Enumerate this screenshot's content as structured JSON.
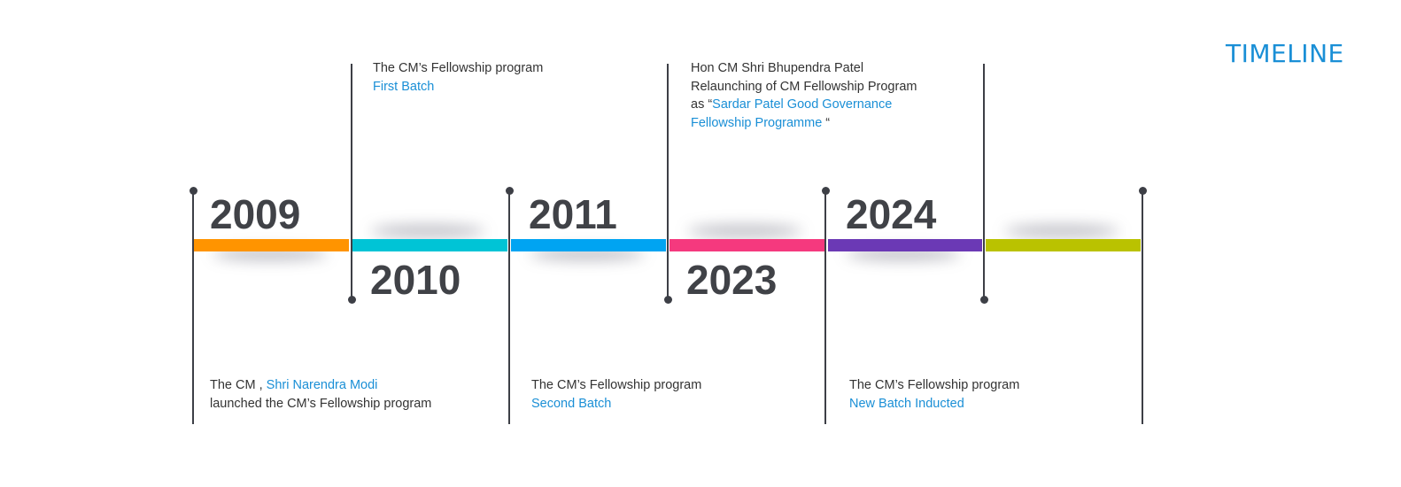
{
  "title": "TIMELINE",
  "colors": {
    "accent": "#1a8fd6",
    "segments": [
      "#ff9400",
      "#00c4d6",
      "#00a4f2",
      "#f5397e",
      "#6b39b5",
      "#bac200"
    ]
  },
  "events": [
    {
      "year": "2009",
      "line1_prefix": "The CM , ",
      "line1_highlight": "Shri Narendra Modi",
      "line2": "launched the CM’s Fellowship program"
    },
    {
      "year": "2010",
      "line1": "The CM’s Fellowship program",
      "line2_highlight": "First Batch"
    },
    {
      "year": "2011",
      "line1": "The CM’s Fellowship program",
      "line2_highlight": "Second Batch"
    },
    {
      "year": "2023",
      "line1": "Hon CM Shri Bhupendra Patel",
      "line2": "Relaunching of CM Fellowship Program",
      "line3_prefix": "as “",
      "line3_highlight": "Sardar Patel Good Governance",
      "line4_highlight": "Fellowship Programme",
      "line4_suffix": " “"
    },
    {
      "year": "2024",
      "line1": "The CM’s Fellowship program",
      "line2_highlight": "New Batch Inducted"
    }
  ]
}
